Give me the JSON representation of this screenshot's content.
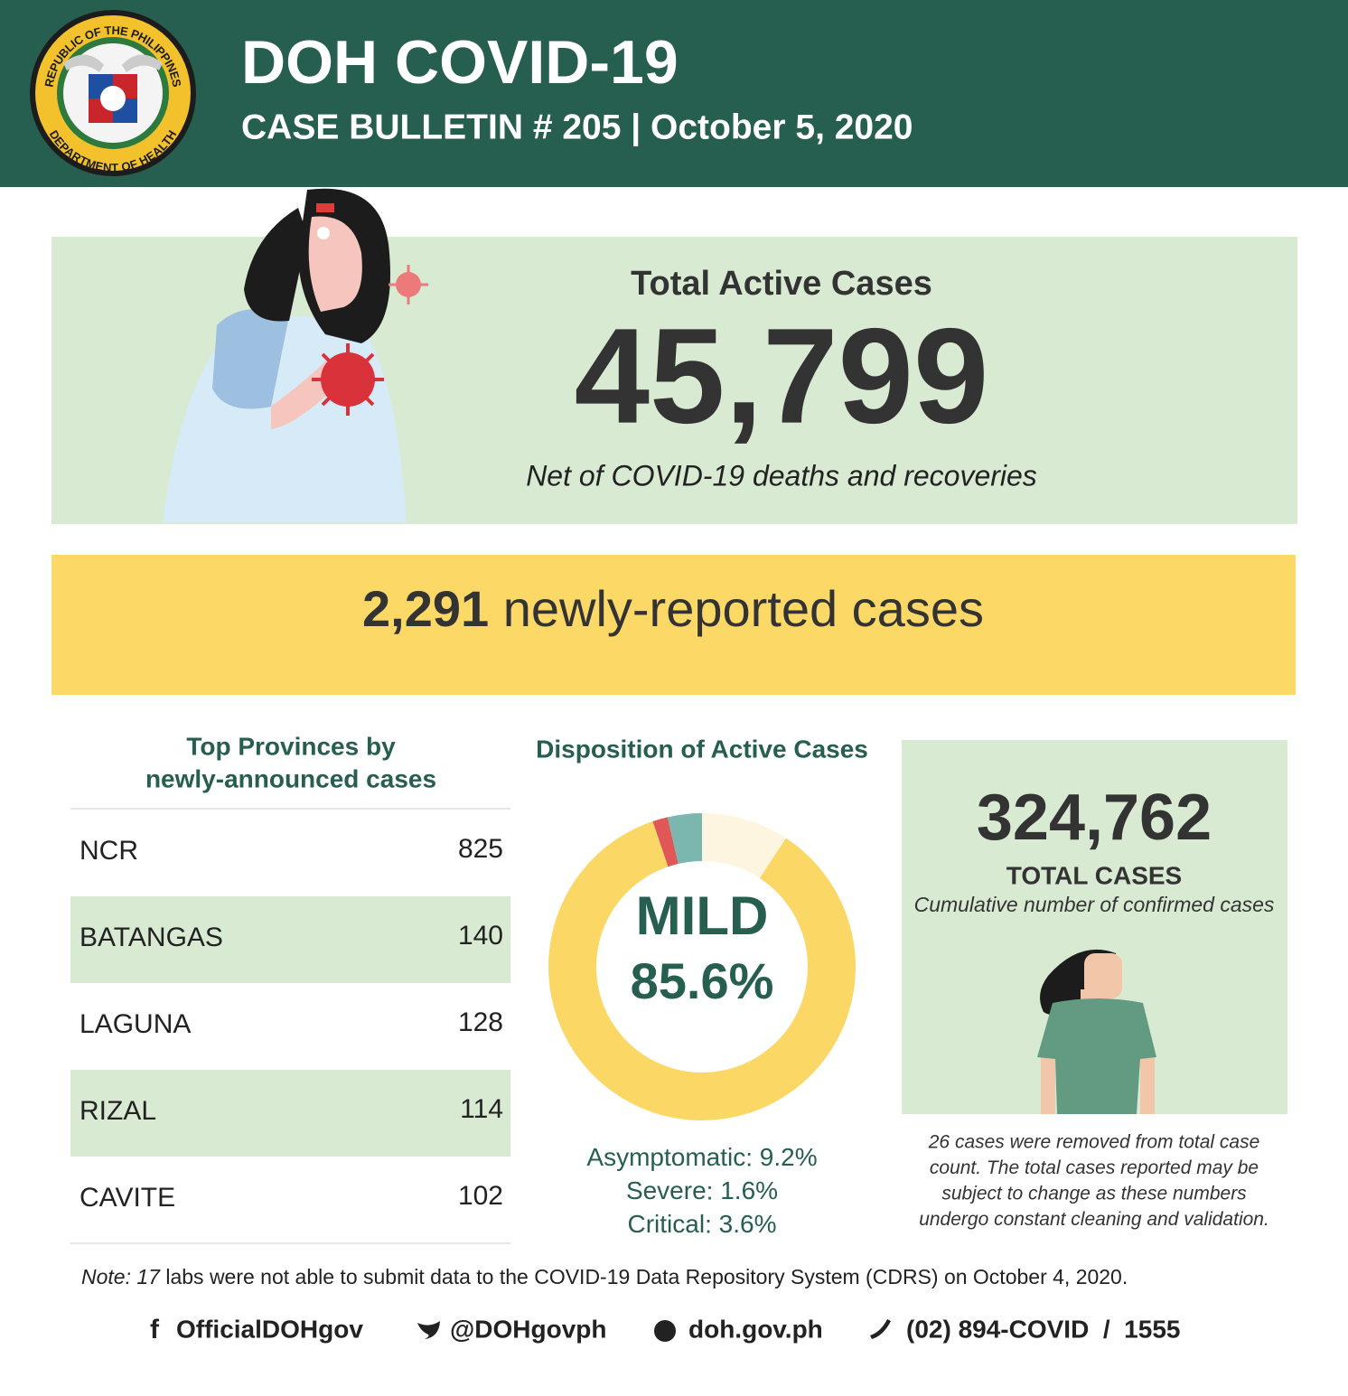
{
  "header": {
    "title": "DOH COVID-19",
    "subtitle": "CASE BULLETIN # 205 | October 5, 2020",
    "logo_top": "REPUBLIC OF THE PHILIPPINES",
    "logo_bottom": "DEPARTMENT OF HEALTH"
  },
  "active_cases": {
    "title": "Total Active Cases",
    "value": "45,799",
    "caption": "Net of COVID-19 deaths and recoveries"
  },
  "new_cases": {
    "count": "2,291",
    "label": "newly-reported cases"
  },
  "top_provinces": {
    "title": [
      "Top Provinces by",
      "newly-announced cases"
    ],
    "rows": [
      [
        "NCR",
        "825"
      ],
      [
        "BATANGAS",
        "140"
      ],
      [
        "LAGUNA",
        "128"
      ],
      [
        "RIZAL",
        "114"
      ],
      [
        "CAVITE",
        "102"
      ]
    ]
  },
  "disposition": {
    "title": "Disposition of Active Cases",
    "segments": [
      {
        "name": "Asymptomatic",
        "value": 9.2,
        "value_label": "9.2%",
        "color": "#fdf5df"
      },
      {
        "name": "MILD",
        "value": 85.6,
        "value_label": "85.6%",
        "color": "#fbd766"
      },
      {
        "name": "Severe",
        "value": 1.6,
        "value_label": "1.6%",
        "color": "#e05757"
      },
      {
        "name": "Critical",
        "value": 3.6,
        "value_label": "3.6%",
        "color": "#7bb7ae"
      }
    ]
  },
  "total_cases": {
    "value": "324,762",
    "title": "TOTAL CASES",
    "caption": "Cumulative number of confirmed cases",
    "note": [
      "26 cases were removed from total case",
      "count. The total cases reported may be",
      "subject to change as these numbers",
      "undergo constant cleaning and validation."
    ]
  },
  "note": {
    "prefix": "Note:",
    "count": "17",
    "text": "labs were not able to submit data to the COVID-19 Data Repository System (CDRS) on October 4, 2020."
  },
  "footer": [
    "OfficialDOHgov",
    "@DOHgovph",
    "doh.gov.ph",
    "(02) 894-COVID  /  1555"
  ]
}
